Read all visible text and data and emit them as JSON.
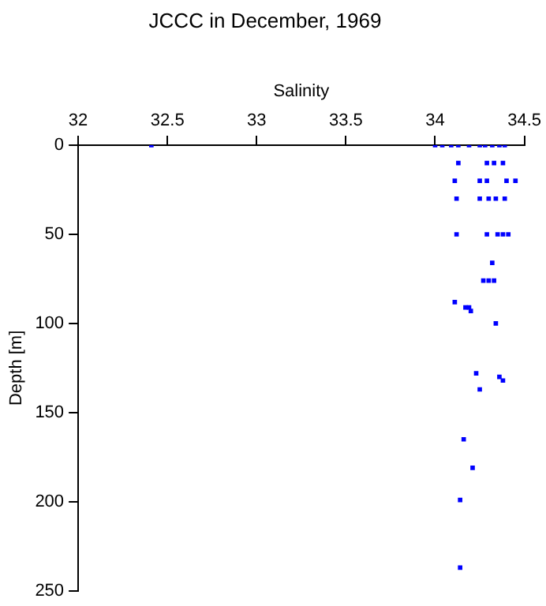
{
  "chart_data": {
    "type": "scatter",
    "title": "JCCC in December, 1969",
    "xlabel": "Salinity",
    "ylabel": "Depth [m]",
    "xlim": [
      32,
      34.5
    ],
    "xticks": [
      32,
      32.5,
      33,
      33.5,
      34,
      34.5
    ],
    "ylim": [
      250,
      0
    ],
    "yticks": [
      0,
      50,
      100,
      150,
      200,
      250
    ],
    "grid": false,
    "legend": false,
    "marker": "square",
    "series": [
      {
        "color": "#0000ff",
        "x": [
          32.41,
          34.0,
          34.04,
          34.09,
          34.13,
          34.19,
          34.25,
          34.28,
          34.32,
          34.36,
          34.39,
          34.13,
          34.29,
          34.33,
          34.38,
          34.11,
          34.25,
          34.29,
          34.4,
          34.45,
          34.12,
          34.25,
          34.3,
          34.34,
          34.39,
          34.12,
          34.29,
          34.35,
          34.38,
          34.41,
          34.32,
          34.27,
          34.3,
          34.33,
          34.11,
          34.17,
          34.19,
          34.2,
          34.34,
          34.23,
          34.36,
          34.38,
          34.25,
          34.16,
          34.21,
          34.14,
          34.14
        ],
        "values": [
          0,
          0,
          0,
          0,
          0,
          0,
          0,
          0,
          0,
          0,
          0,
          10,
          10,
          10,
          10,
          20,
          20,
          20,
          20,
          20,
          30,
          30,
          30,
          30,
          30,
          50,
          50,
          50,
          50,
          50,
          66,
          76,
          76,
          76,
          88,
          91,
          91,
          93,
          100,
          128,
          130,
          132,
          137,
          165,
          181,
          199,
          237
        ]
      }
    ]
  }
}
